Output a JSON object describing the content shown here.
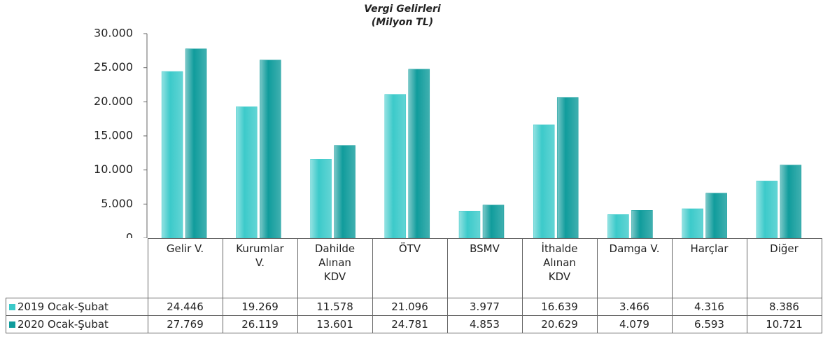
{
  "chart_data": {
    "type": "bar",
    "title": "Vergi Gelirleri",
    "subtitle": "(Milyon TL)",
    "categories": [
      "Gelir V.",
      "Kurumlar V.",
      "Dahilde Alınan KDV",
      "ÖTV",
      "BSMV",
      "İthalde Alınan KDV",
      "Damga V.",
      "Harçlar",
      "Diğer"
    ],
    "series": [
      {
        "name": "2019 Ocak-Şubat",
        "color": "#3ccaca",
        "values": [
          24446,
          19269,
          11578,
          21096,
          3977,
          16639,
          3466,
          4316,
          8386
        ],
        "value_labels": [
          "24.446",
          "19.269",
          "11.578",
          "21.096",
          "3.977",
          "16.639",
          "3.466",
          "4.316",
          "8.386"
        ]
      },
      {
        "name": "2020 Ocak-Şubat",
        "color": "#109c9c",
        "values": [
          27769,
          26119,
          13601,
          24781,
          4853,
          20629,
          4079,
          6593,
          10721
        ],
        "value_labels": [
          "27.769",
          "26.119",
          "13.601",
          "24.781",
          "4.853",
          "20.629",
          "4.079",
          "6.593",
          "10.721"
        ]
      }
    ],
    "ylim": [
      0,
      30000
    ],
    "yticks": [
      0,
      {
        "value": 5000,
        "label": "5.000"
      },
      {
        "value": 10000,
        "label": "10.000"
      },
      {
        "value": 15000,
        "label": "15.000"
      },
      {
        "value": 20000,
        "label": "20.000"
      },
      {
        "value": 25000,
        "label": "25.000"
      },
      {
        "value": 30000,
        "label": "30.000"
      }
    ],
    "grid": false
  }
}
